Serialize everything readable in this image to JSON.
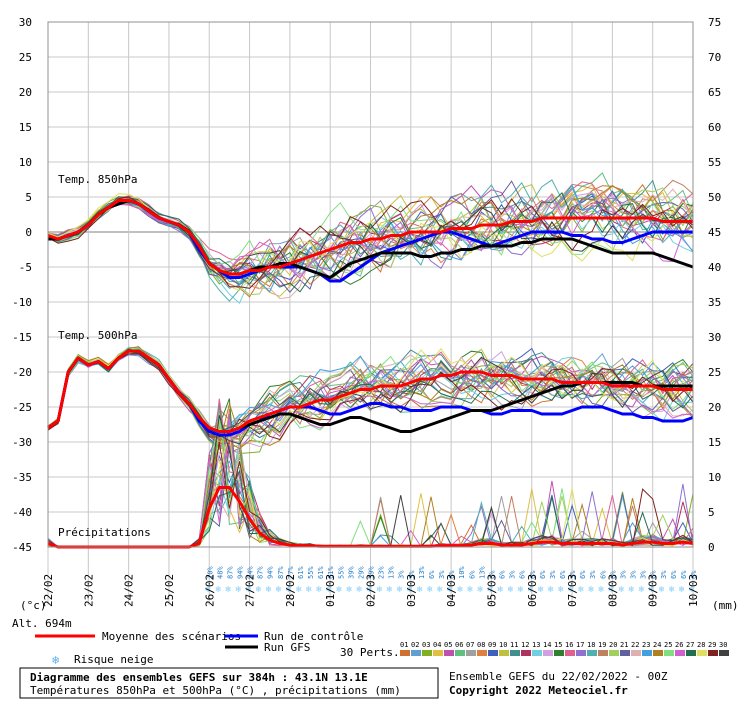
{
  "header_labels": {
    "unit_left": "(°c)",
    "unit_right": "(mm)",
    "altitude": "Alt. 694m",
    "temp850": "Temp. 850hPa",
    "temp500": "Temp. 500hPa",
    "precip": "Précipitations"
  },
  "legend": {
    "mean": "Moyenne des scénarios",
    "control": "Run de contrôle",
    "gfs": "Run GFS",
    "snow": "Risque neige",
    "perts_label": "30 Perts.",
    "pert_ids": [
      "01",
      "02",
      "03",
      "04",
      "05",
      "06",
      "07",
      "08",
      "09",
      "10",
      "11",
      "12",
      "13",
      "14",
      "15",
      "16",
      "17",
      "18",
      "19",
      "20",
      "21",
      "22",
      "23",
      "24",
      "25",
      "26",
      "27",
      "28",
      "29",
      "30"
    ]
  },
  "footer": {
    "title": "Diagramme des ensembles GEFS sur 384h : 43.1N 13.1E",
    "subtitle": "Températures 850hPa et 500hPa (°C) , précipitations (mm)",
    "run": "Ensemble GEFS du 22/02/2022 - 00Z",
    "copyright": "Copyright 2022 Meteociel.fr"
  },
  "colors": {
    "mean": "#ff0000",
    "control": "#0000ff",
    "gfs": "#000000",
    "grid": "#c8c8c8",
    "snow": "#87cefa",
    "perts": [
      "#d07030",
      "#5fa0d0",
      "#80b020",
      "#e0c040",
      "#c050b0",
      "#60c080",
      "#a0a0a0",
      "#e08040",
      "#4060c0",
      "#c0c040",
      "#409090",
      "#b03060",
      "#70d0e0",
      "#d0a0e0",
      "#308030",
      "#e06090",
      "#9070d0",
      "#50b0b0",
      "#c08060",
      "#a0d060",
      "#6060a0",
      "#e0b0b0",
      "#40a0e0",
      "#b08020",
      "#80e080",
      "#d060d0",
      "#207050",
      "#e0e060",
      "#802020",
      "#404040"
    ]
  },
  "chart_data": {
    "type": "line",
    "x_unit": "date",
    "x_ticks": [
      "22/02",
      "23/02",
      "24/02",
      "25/02",
      "26/02",
      "27/02",
      "28/02",
      "01/03",
      "02/03",
      "03/03",
      "04/03",
      "05/03",
      "06/03",
      "07/03",
      "08/03",
      "09/03",
      "10/03"
    ],
    "y_left_label": "(°c)",
    "y_left_range": [
      -45,
      30
    ],
    "y_left_ticks": [
      30,
      25,
      20,
      15,
      10,
      5,
      0,
      -5,
      -10,
      -15,
      -20,
      -25,
      -30,
      -35,
      -40,
      -45
    ],
    "y_right_label": "(mm)",
    "y_right_range": [
      0,
      75
    ],
    "y_right_ticks": [
      75,
      70,
      65,
      60,
      55,
      50,
      45,
      40,
      35,
      30,
      25,
      20,
      15,
      10,
      5,
      0
    ],
    "step_hours": 6,
    "series": [
      {
        "name": "Temp. 850hPa — Moyenne des scénarios",
        "values": [
          -0.5,
          -1,
          -0.5,
          0,
          1,
          2.5,
          3.5,
          4.5,
          4.5,
          4,
          3,
          2,
          1.5,
          1,
          0,
          -2,
          -4.5,
          -5.5,
          -6,
          -6,
          -5.5,
          -5.5,
          -5,
          -5,
          -4.5,
          -4,
          -3.5,
          -3,
          -2.5,
          -2,
          -1.5,
          -1.5,
          -1,
          -1,
          -0.5,
          -0.5,
          0,
          0,
          0,
          0,
          0.5,
          0.5,
          0.5,
          1,
          1,
          1,
          1.5,
          1.5,
          1.5,
          2,
          2,
          2,
          2,
          2,
          2,
          2,
          2,
          2,
          2,
          2,
          2,
          1.5,
          1.5,
          1.5,
          1.5
        ]
      },
      {
        "name": "Temp. 850hPa — Run de contrôle",
        "values": [
          -1,
          -1,
          -0.5,
          0,
          1,
          2.5,
          3.5,
          4,
          4.5,
          4,
          3,
          2,
          1.5,
          1,
          0,
          -2.5,
          -4.5,
          -5.5,
          -6.5,
          -6.5,
          -6,
          -5.5,
          -5,
          -5,
          -5,
          -5,
          -5.5,
          -6,
          -7,
          -7,
          -6,
          -5,
          -4,
          -3,
          -2.5,
          -2,
          -1.5,
          -1,
          -0.5,
          0,
          0,
          -0.5,
          -1,
          -1.5,
          -2,
          -1.5,
          -1,
          -0.5,
          0,
          0,
          0,
          0,
          -0.5,
          -0.5,
          -1,
          -1,
          -1.5,
          -1.5,
          -1,
          -0.5,
          0,
          0,
          0,
          0,
          0
        ]
      },
      {
        "name": "Temp. 850hPa — Run GFS",
        "values": [
          -1,
          -1,
          -0.5,
          0,
          1,
          2.5,
          3.5,
          4,
          4.5,
          4,
          3,
          2,
          1.5,
          1,
          0,
          -2,
          -4.5,
          -5.5,
          -6,
          -6,
          -5.5,
          -5,
          -5,
          -4.5,
          -4.5,
          -5,
          -5.5,
          -6,
          -6.5,
          -5.5,
          -4.5,
          -4,
          -3.5,
          -3,
          -3,
          -3,
          -3,
          -3.5,
          -3.5,
          -3,
          -3,
          -2.5,
          -2.5,
          -2,
          -2,
          -2,
          -2,
          -1.5,
          -1.5,
          -1,
          -1,
          -1,
          -1,
          -1.5,
          -2,
          -2.5,
          -3,
          -3,
          -3,
          -3,
          -3,
          -3.5,
          -4,
          -4.5,
          -5
        ]
      },
      {
        "name": "Temp. 500hPa — Moyenne des scénarios",
        "values": [
          -28,
          -27,
          -20,
          -18,
          -19,
          -18.5,
          -19.5,
          -18,
          -17,
          -17,
          -18,
          -19,
          -21,
          -23,
          -24.5,
          -26.5,
          -28,
          -28.5,
          -28.5,
          -28,
          -27,
          -26.5,
          -26,
          -25.5,
          -25,
          -25,
          -24.5,
          -24,
          -24,
          -23.5,
          -23,
          -22.5,
          -22.5,
          -22,
          -22,
          -22,
          -21.5,
          -21,
          -21,
          -20.5,
          -20.5,
          -20,
          -20,
          -20,
          -20.5,
          -20.5,
          -20.5,
          -21,
          -21,
          -21,
          -21,
          -21.5,
          -21.5,
          -21.5,
          -21.5,
          -21.5,
          -22,
          -22,
          -22,
          -22,
          -22,
          -22.5,
          -22.5,
          -22.5,
          -22.5
        ]
      },
      {
        "name": "Temp. 500hPa — Run de contrôle",
        "values": [
          -28,
          -27,
          -20,
          -18,
          -19,
          -18.5,
          -19.5,
          -18,
          -17,
          -17,
          -18,
          -19,
          -21,
          -23,
          -24.5,
          -27,
          -28.5,
          -29,
          -29,
          -28.5,
          -27.5,
          -27,
          -26,
          -25.5,
          -25,
          -25,
          -25,
          -25.5,
          -26,
          -26,
          -25.5,
          -25,
          -24.5,
          -24.5,
          -25,
          -25,
          -25.5,
          -25.5,
          -25.5,
          -25,
          -25,
          -25,
          -25.5,
          -25.5,
          -26,
          -26,
          -25.5,
          -25.5,
          -25.5,
          -26,
          -26,
          -26,
          -25.5,
          -25,
          -25,
          -25,
          -25.5,
          -26,
          -26,
          -26.5,
          -26.5,
          -27,
          -27,
          -27,
          -26.5
        ]
      },
      {
        "name": "Temp. 500hPa — Run GFS",
        "values": [
          -28,
          -27,
          -20,
          -18,
          -19,
          -18.5,
          -19.5,
          -18,
          -17,
          -17,
          -18,
          -19,
          -21,
          -23,
          -24.5,
          -26.5,
          -28,
          -28.5,
          -28.5,
          -28,
          -27.5,
          -27,
          -26.5,
          -26,
          -26,
          -26.5,
          -27,
          -27.5,
          -27.5,
          -27,
          -26.5,
          -26.5,
          -27,
          -27.5,
          -28,
          -28.5,
          -28.5,
          -28,
          -27.5,
          -27,
          -26.5,
          -26,
          -25.5,
          -25.5,
          -25.5,
          -25,
          -24.5,
          -24,
          -23.5,
          -23,
          -22.5,
          -22,
          -22,
          -21.5,
          -21.5,
          -21.5,
          -21.5,
          -21.5,
          -21.5,
          -22,
          -22,
          -22,
          -22,
          -22,
          -22
        ]
      },
      {
        "name": "Précipitations — Moyenne des scénarios (mm)",
        "values": [
          0.5,
          0,
          0,
          0,
          0,
          0,
          0,
          0,
          0,
          0,
          0,
          0,
          0,
          0,
          0,
          0.5,
          5.5,
          8.5,
          8.5,
          6.5,
          4,
          2,
          1,
          0.5,
          0.3,
          0.2,
          0.2,
          0.1,
          0.1,
          0.1,
          0.1,
          0.1,
          0.1,
          0.1,
          0.1,
          0.1,
          0.1,
          0.1,
          0.1,
          0.2,
          0.2,
          0.2,
          0.3,
          0.5,
          0.5,
          0.3,
          0.3,
          0.3,
          0.5,
          0.7,
          0.7,
          0.5,
          0.5,
          0.5,
          0.5,
          0.5,
          0.5,
          0.3,
          0.5,
          0.7,
          0.7,
          0.5,
          0.5,
          0.7,
          0.5
        ]
      }
    ],
    "snow_risk_pct": [
      "10%",
      "48%",
      "87%",
      "94%",
      "94%",
      "87%",
      "94%",
      "87%",
      "77%",
      "61%",
      "55%",
      "61%",
      "61%",
      "55%",
      "39%",
      "29%",
      "39%",
      "23%",
      "13%",
      "3%",
      "3%",
      "13%",
      "6%",
      "3%",
      "6%",
      "10%",
      "6%",
      "13%",
      "6%",
      "6%",
      "3%",
      "6%",
      "6%",
      "6%",
      "3%",
      "6%",
      "3%",
      "6%",
      "3%",
      "6%",
      "6%",
      "3%",
      "3%",
      "3%",
      "6%",
      "3%",
      "6%",
      "6%",
      "6%",
      "6%",
      "6%",
      "3%",
      "6%",
      "6%",
      "6%",
      "10%",
      "16%"
    ]
  }
}
